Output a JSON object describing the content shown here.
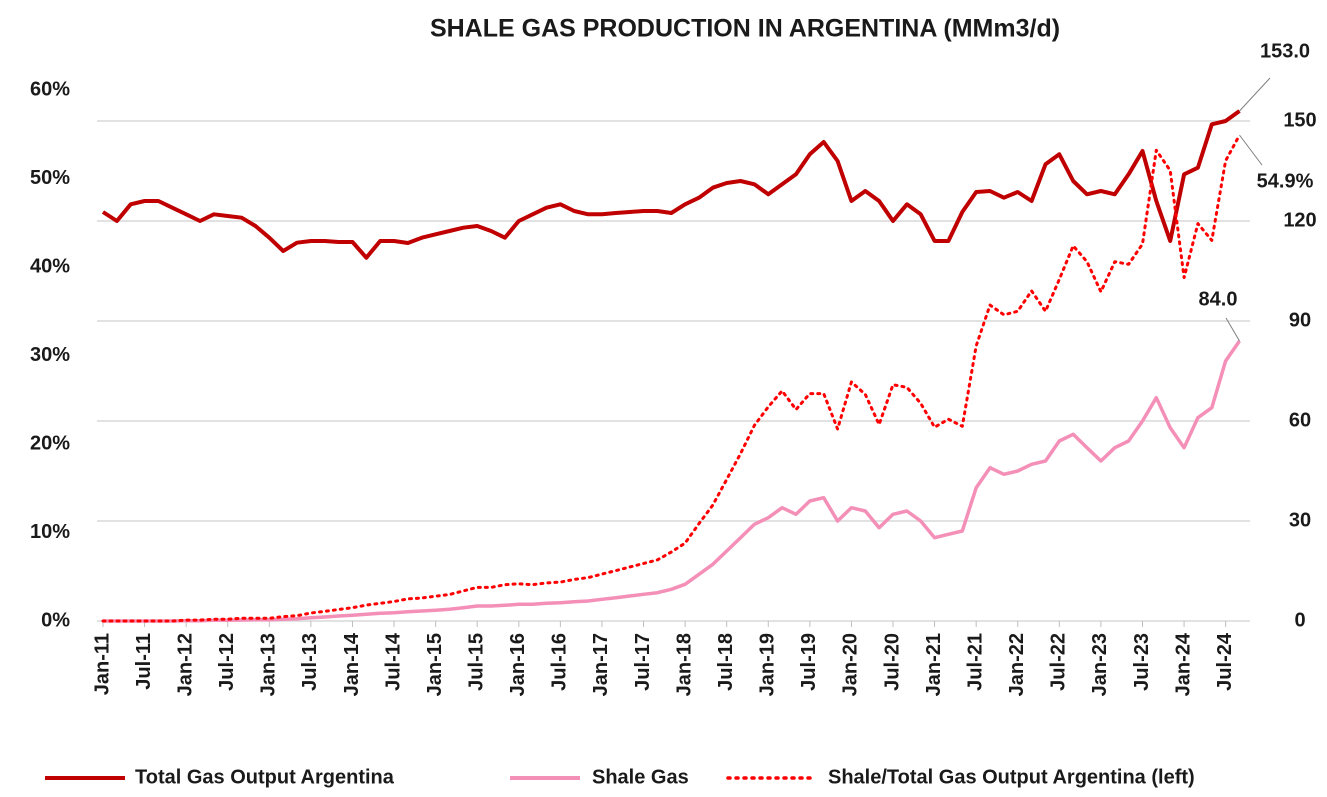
{
  "chart_data": {
    "type": "line",
    "title": "SHALE GAS PRODUCTION IN ARGENTINA (MMm3/d)",
    "categories": [
      "Jan-11",
      null,
      null,
      "Jul-11",
      null,
      null,
      "Jan-12",
      null,
      null,
      "Jul-12",
      null,
      null,
      "Jan-13",
      null,
      null,
      "Jul-13",
      null,
      null,
      "Jan-14",
      null,
      null,
      "Jul-14",
      null,
      null,
      "Jan-15",
      null,
      null,
      "Jul-15",
      null,
      null,
      "Jan-16",
      null,
      null,
      "Jul-16",
      null,
      null,
      "Jan-17",
      null,
      null,
      "Jul-17",
      null,
      null,
      "Jan-18",
      null,
      null,
      "Jul-18",
      null,
      null,
      "Jan-19",
      null,
      null,
      "Jul-19",
      null,
      null,
      "Jan-20",
      null,
      null,
      "Jul-20",
      null,
      null,
      "Jan-21",
      null,
      null,
      "Jul-21",
      null,
      null,
      "Jan-22",
      null,
      null,
      "Jul-22",
      null,
      null,
      "Jan-23",
      null,
      null,
      "Jul-23",
      null,
      null,
      "Jan-24",
      null,
      null,
      "Jul-24",
      null
    ],
    "series": [
      {
        "name": "Total Gas Output Argentina",
        "color": "#c00000",
        "style": "solid",
        "axis": "y2",
        "values": [
          122.7,
          120,
          125,
          126,
          126,
          124,
          122,
          120,
          122,
          121.5,
          121,
          118.5,
          115,
          111,
          113.5,
          114,
          114,
          113.7,
          113.7,
          109,
          114,
          114,
          113.4,
          115,
          116,
          117,
          118,
          118.5,
          117,
          115,
          120,
          122,
          124,
          125,
          123,
          122,
          122,
          122.4,
          122.7,
          123,
          123,
          122.4,
          125,
          127,
          130,
          131.4,
          132,
          131,
          128,
          131,
          134,
          140,
          143.7,
          138,
          126,
          129,
          126,
          120,
          125,
          122,
          114,
          114,
          122.7,
          128.7,
          129,
          127,
          128.7,
          126,
          137,
          140,
          132,
          128,
          129,
          128,
          134,
          141,
          126,
          114,
          134,
          136,
          149,
          150,
          153
        ],
        "value_labels": [
          null,
          null,
          null,
          null,
          null,
          null,
          null,
          null,
          null,
          null,
          null,
          null,
          null,
          null,
          null,
          null,
          null,
          null,
          null,
          null,
          null,
          null,
          null,
          null,
          null,
          null,
          null,
          null,
          null,
          null,
          null,
          null,
          null,
          null,
          null,
          null,
          null,
          null,
          null,
          null,
          null,
          null,
          null,
          null,
          null,
          null,
          null,
          null,
          null,
          null,
          null,
          null,
          null,
          null,
          null,
          null,
          null,
          null,
          null,
          null,
          null,
          null,
          null,
          null,
          null,
          null,
          null,
          null,
          null,
          null,
          null,
          null,
          null,
          null,
          null,
          null,
          null,
          null,
          null,
          null,
          null,
          null,
          "153.0"
        ]
      },
      {
        "name": "Shale Gas",
        "color": "#f48fb8",
        "style": "solid",
        "axis": "y2",
        "values": [
          0,
          0,
          0,
          0,
          0,
          0,
          0.1,
          0.1,
          0.2,
          0.2,
          0.3,
          0.4,
          0.4,
          0.5,
          0.7,
          1,
          1.2,
          1.5,
          1.7,
          2,
          2.3,
          2.5,
          2.8,
          3,
          3.2,
          3.5,
          4,
          4.5,
          4.5,
          4.7,
          5,
          5,
          5.3,
          5.5,
          5.8,
          6,
          6.5,
          7,
          7.5,
          8,
          8.5,
          9.5,
          11,
          14,
          17,
          21,
          25,
          29,
          31,
          34,
          32,
          36,
          37,
          30,
          34,
          33,
          28,
          32,
          33,
          30,
          25,
          26,
          27,
          40,
          46,
          44,
          45,
          47,
          48,
          54,
          56,
          52,
          48,
          52,
          54,
          60,
          67,
          58,
          52,
          61,
          64,
          78,
          84
        ],
        "value_labels": [
          null,
          null,
          null,
          null,
          null,
          null,
          null,
          null,
          null,
          null,
          null,
          null,
          null,
          null,
          null,
          null,
          null,
          null,
          null,
          null,
          null,
          null,
          null,
          null,
          null,
          null,
          null,
          null,
          null,
          null,
          null,
          null,
          null,
          null,
          null,
          null,
          null,
          null,
          null,
          null,
          null,
          null,
          null,
          null,
          null,
          null,
          null,
          null,
          null,
          null,
          null,
          null,
          null,
          null,
          null,
          null,
          null,
          null,
          null,
          null,
          null,
          null,
          null,
          null,
          null,
          null,
          null,
          null,
          null,
          null,
          null,
          null,
          null,
          null,
          null,
          null,
          null,
          null,
          null,
          null,
          null,
          null,
          "84.0"
        ]
      },
      {
        "name": "Shale/Total Gas Output Argentina (left)",
        "color": "#ff0000",
        "style": "dotted",
        "axis": "y",
        "values": [
          0,
          0,
          0,
          0,
          0,
          0,
          0.1,
          0.1,
          0.2,
          0.2,
          0.3,
          0.3,
          0.3,
          0.5,
          0.6,
          0.9,
          1.1,
          1.3,
          1.5,
          1.8,
          2.0,
          2.2,
          2.5,
          2.6,
          2.8,
          3.0,
          3.4,
          3.8,
          3.8,
          4.1,
          4.2,
          4.1,
          4.3,
          4.4,
          4.7,
          4.9,
          5.3,
          5.7,
          6.1,
          6.5,
          6.9,
          7.8,
          8.8,
          11.0,
          13.1,
          16.0,
          18.9,
          22.1,
          24.2,
          26.0,
          23.9,
          25.7,
          25.7,
          21.7,
          27.0,
          25.6,
          22.2,
          26.7,
          26.4,
          24.6,
          21.9,
          22.8,
          22.0,
          31.1,
          35.7,
          34.6,
          35.0,
          37.3,
          35.0,
          38.6,
          42.4,
          40.6,
          37.2,
          40.6,
          40.3,
          42.6,
          53.2,
          50.9,
          38.8,
          44.9,
          43.0,
          52.0,
          54.9
        ],
        "value_labels": [
          null,
          null,
          null,
          null,
          null,
          null,
          null,
          null,
          null,
          null,
          null,
          null,
          null,
          null,
          null,
          null,
          null,
          null,
          null,
          null,
          null,
          null,
          null,
          null,
          null,
          null,
          null,
          null,
          null,
          null,
          null,
          null,
          null,
          null,
          null,
          null,
          null,
          null,
          null,
          null,
          null,
          null,
          null,
          null,
          null,
          null,
          null,
          null,
          null,
          null,
          null,
          null,
          null,
          null,
          null,
          null,
          null,
          null,
          null,
          null,
          null,
          null,
          null,
          null,
          null,
          null,
          null,
          null,
          null,
          null,
          null,
          null,
          null,
          null,
          null,
          null,
          null,
          null,
          null,
          null,
          null,
          null,
          "54.9%"
        ]
      }
    ],
    "ylim": [
      0,
      60
    ],
    "yticks": [
      {
        "value": 0,
        "label": "0%"
      },
      {
        "value": 10,
        "label": "10%"
      },
      {
        "value": 20,
        "label": "20%"
      },
      {
        "value": 30,
        "label": "30%"
      },
      {
        "value": 40,
        "label": "40%"
      },
      {
        "value": 50,
        "label": "50%"
      },
      {
        "value": 60,
        "label": "60%"
      }
    ],
    "y2lim": [
      0,
      159.3
    ],
    "y2ticks": [
      0,
      30,
      60,
      90,
      120,
      150
    ],
    "grid": true,
    "legend": "bottom"
  }
}
